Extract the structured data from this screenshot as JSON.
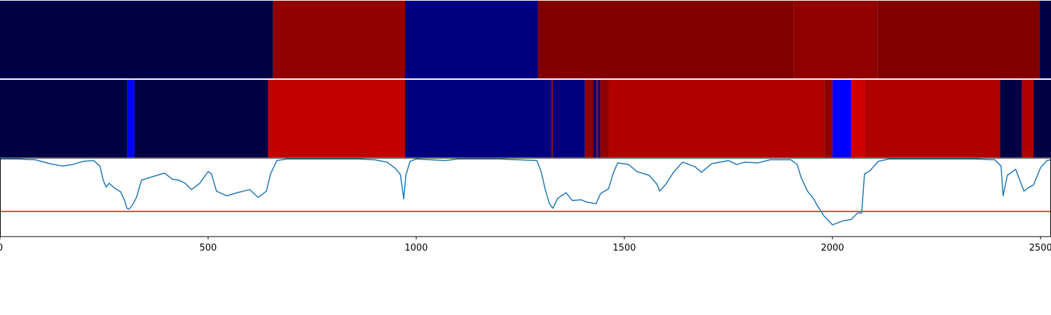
{
  "chart_data": {
    "type": "heatmap",
    "x_range": [
      0,
      2525
    ],
    "x_ticks": [
      0,
      500,
      1000,
      1500,
      2000,
      2500
    ],
    "panels": [
      {
        "kind": "segments",
        "segments": [
          {
            "start": 0,
            "end": 656,
            "color": "#000045"
          },
          {
            "start": 656,
            "end": 973,
            "color": "#8f0000"
          },
          {
            "start": 973,
            "end": 1292,
            "color": "#00007f"
          },
          {
            "start": 1292,
            "end": 1907,
            "color": "#800000"
          },
          {
            "start": 1907,
            "end": 2108,
            "color": "#8f0000"
          },
          {
            "start": 2108,
            "end": 2498,
            "color": "#800000"
          },
          {
            "start": 2498,
            "end": 2525,
            "color": "#000045"
          }
        ]
      },
      {
        "kind": "segments",
        "segments": [
          {
            "start": 0,
            "end": 306,
            "color": "#000045"
          },
          {
            "start": 306,
            "end": 323,
            "color": "#0000ff"
          },
          {
            "start": 323,
            "end": 644,
            "color": "#000045"
          },
          {
            "start": 644,
            "end": 973,
            "color": "#c30000"
          },
          {
            "start": 973,
            "end": 1325,
            "color": "#00007f"
          },
          {
            "start": 1325,
            "end": 1328,
            "color": "#800000"
          },
          {
            "start": 1328,
            "end": 1405,
            "color": "#00007f"
          },
          {
            "start": 1405,
            "end": 1425,
            "color": "#8f0000"
          },
          {
            "start": 1425,
            "end": 1433,
            "color": "#00007f"
          },
          {
            "start": 1433,
            "end": 1437,
            "color": "#8f0000"
          },
          {
            "start": 1437,
            "end": 1442,
            "color": "#00007f"
          },
          {
            "start": 1442,
            "end": 1462,
            "color": "#8f0000"
          },
          {
            "start": 1462,
            "end": 1980,
            "color": "#b00000"
          },
          {
            "start": 1980,
            "end": 2000,
            "color": "#8f0000"
          },
          {
            "start": 2000,
            "end": 2045,
            "color": "#0000ff"
          },
          {
            "start": 2045,
            "end": 2078,
            "color": "#d00000"
          },
          {
            "start": 2078,
            "end": 2403,
            "color": "#b00000"
          },
          {
            "start": 2403,
            "end": 2455,
            "color": "#000045"
          },
          {
            "start": 2455,
            "end": 2483,
            "color": "#b00000"
          },
          {
            "start": 2483,
            "end": 2525,
            "color": "#000045"
          }
        ]
      },
      {
        "kind": "line",
        "line_color": "#1f77b4",
        "threshold": 0.32,
        "threshold_color": "#ff0000",
        "ylim": [
          0,
          1
        ],
        "points": [
          [
            0,
            0.99
          ],
          [
            40,
            0.99
          ],
          [
            85,
            0.98
          ],
          [
            120,
            0.93
          ],
          [
            150,
            0.9
          ],
          [
            175,
            0.92
          ],
          [
            200,
            0.96
          ],
          [
            225,
            0.97
          ],
          [
            240,
            0.9
          ],
          [
            248,
            0.72
          ],
          [
            255,
            0.63
          ],
          [
            262,
            0.68
          ],
          [
            275,
            0.62
          ],
          [
            290,
            0.57
          ],
          [
            300,
            0.45
          ],
          [
            305,
            0.36
          ],
          [
            310,
            0.35
          ],
          [
            318,
            0.4
          ],
          [
            328,
            0.5
          ],
          [
            340,
            0.72
          ],
          [
            370,
            0.77
          ],
          [
            395,
            0.81
          ],
          [
            415,
            0.73
          ],
          [
            430,
            0.72
          ],
          [
            445,
            0.68
          ],
          [
            460,
            0.6
          ],
          [
            480,
            0.68
          ],
          [
            500,
            0.83
          ],
          [
            508,
            0.8
          ],
          [
            520,
            0.58
          ],
          [
            545,
            0.52
          ],
          [
            570,
            0.56
          ],
          [
            600,
            0.6
          ],
          [
            620,
            0.5
          ],
          [
            640,
            0.58
          ],
          [
            650,
            0.8
          ],
          [
            665,
            0.97
          ],
          [
            690,
            0.99
          ],
          [
            760,
            0.99
          ],
          [
            860,
            0.99
          ],
          [
            900,
            0.98
          ],
          [
            930,
            0.95
          ],
          [
            950,
            0.87
          ],
          [
            962,
            0.79
          ],
          [
            970,
            0.48
          ],
          [
            975,
            0.78
          ],
          [
            985,
            0.96
          ],
          [
            1000,
            0.99
          ],
          [
            1070,
            0.97
          ],
          [
            1100,
            0.99
          ],
          [
            1200,
            0.99
          ],
          [
            1290,
            0.97
          ],
          [
            1300,
            0.83
          ],
          [
            1310,
            0.6
          ],
          [
            1320,
            0.42
          ],
          [
            1328,
            0.36
          ],
          [
            1340,
            0.49
          ],
          [
            1360,
            0.56
          ],
          [
            1375,
            0.46
          ],
          [
            1395,
            0.47
          ],
          [
            1410,
            0.44
          ],
          [
            1432,
            0.42
          ],
          [
            1443,
            0.55
          ],
          [
            1462,
            0.61
          ],
          [
            1474,
            0.82
          ],
          [
            1484,
            0.94
          ],
          [
            1510,
            0.92
          ],
          [
            1530,
            0.83
          ],
          [
            1560,
            0.78
          ],
          [
            1578,
            0.67
          ],
          [
            1585,
            0.58
          ],
          [
            1600,
            0.67
          ],
          [
            1618,
            0.82
          ],
          [
            1640,
            0.95
          ],
          [
            1670,
            0.89
          ],
          [
            1685,
            0.82
          ],
          [
            1710,
            0.93
          ],
          [
            1750,
            0.97
          ],
          [
            1770,
            0.92
          ],
          [
            1790,
            0.95
          ],
          [
            1820,
            0.94
          ],
          [
            1850,
            0.98
          ],
          [
            1900,
            0.98
          ],
          [
            1915,
            0.92
          ],
          [
            1925,
            0.75
          ],
          [
            1940,
            0.58
          ],
          [
            1955,
            0.48
          ],
          [
            1962,
            0.41
          ],
          [
            1980,
            0.26
          ],
          [
            2000,
            0.15
          ],
          [
            2025,
            0.2
          ],
          [
            2045,
            0.22
          ],
          [
            2060,
            0.3
          ],
          [
            2070,
            0.3
          ],
          [
            2077,
            0.8
          ],
          [
            2090,
            0.84
          ],
          [
            2110,
            0.96
          ],
          [
            2135,
            0.99
          ],
          [
            2200,
            0.99
          ],
          [
            2340,
            0.99
          ],
          [
            2390,
            0.98
          ],
          [
            2405,
            0.9
          ],
          [
            2410,
            0.52
          ],
          [
            2420,
            0.78
          ],
          [
            2440,
            0.86
          ],
          [
            2450,
            0.72
          ],
          [
            2460,
            0.58
          ],
          [
            2470,
            0.62
          ],
          [
            2483,
            0.66
          ],
          [
            2490,
            0.75
          ],
          [
            2500,
            0.88
          ],
          [
            2515,
            0.97
          ],
          [
            2525,
            0.98
          ]
        ]
      }
    ]
  }
}
